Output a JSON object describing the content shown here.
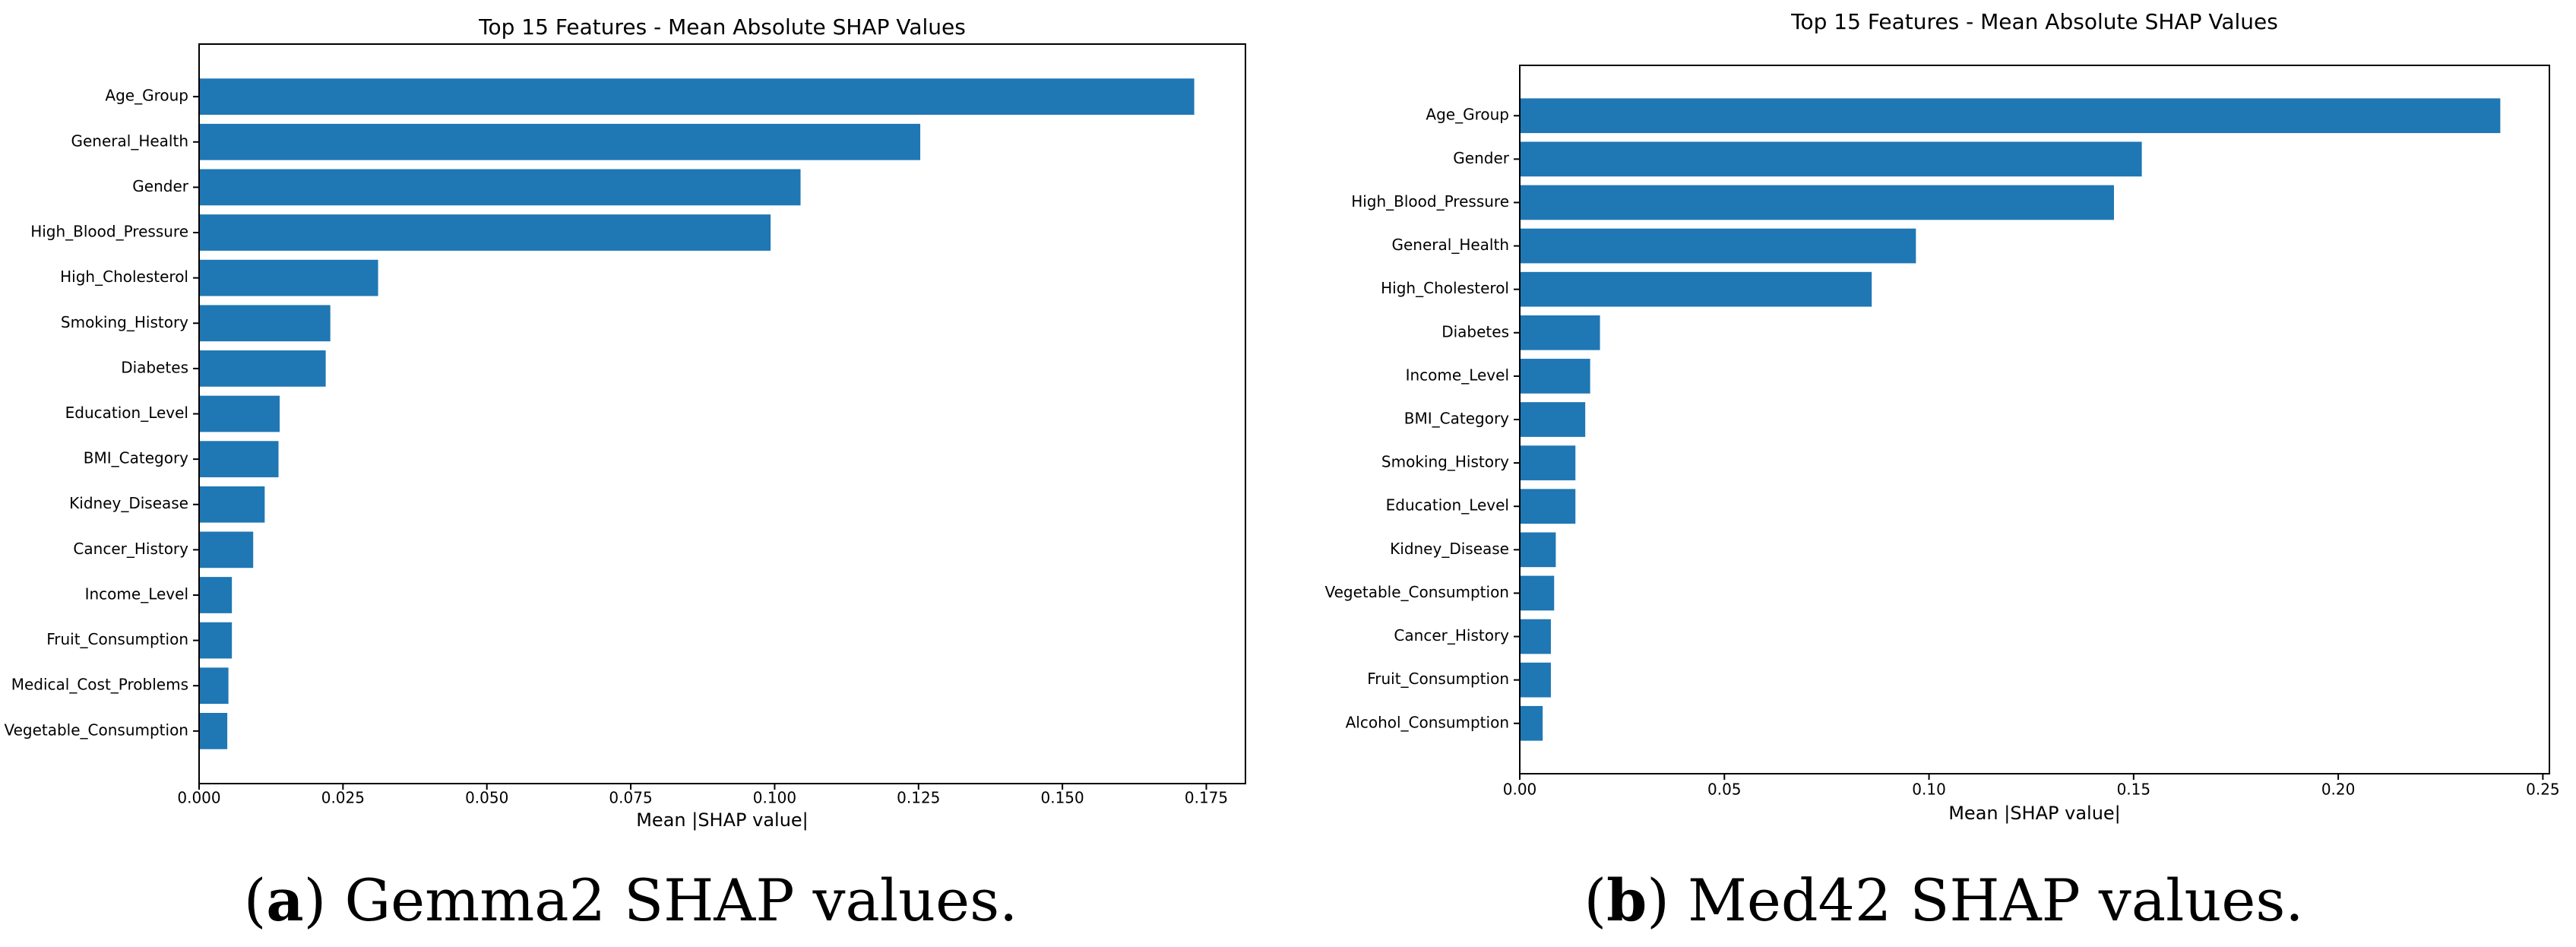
{
  "chart_data": [
    {
      "type": "barh",
      "title": "Top 15 Features - Mean Absolute SHAP Values",
      "x_label": "Mean |SHAP value|",
      "color": "#1f77b4",
      "categories": [
        "Age_Group",
        "General_Health",
        "Gender",
        "High_Blood_Pressure",
        "High_Cholesterol",
        "Smoking_History",
        "Diabetes",
        "Education_Level",
        "BMI_Category",
        "Kidney_Disease",
        "Cancer_History",
        "Income_Level",
        "Fruit_Consumption",
        "Medical_Cost_Problems",
        "Vegetable_Consumption"
      ],
      "values": [
        0.1729,
        0.1253,
        0.1045,
        0.0993,
        0.0311,
        0.0228,
        0.022,
        0.014,
        0.0138,
        0.0114,
        0.0094,
        0.0057,
        0.0057,
        0.0051,
        0.0049
      ],
      "xlim": [
        0,
        0.1818
      ],
      "xticks": [
        {
          "value": 0,
          "label": "0.000"
        },
        {
          "value": 0.025,
          "label": "0.025"
        },
        {
          "value": 0.05,
          "label": "0.050"
        },
        {
          "value": 0.075,
          "label": "0.075"
        },
        {
          "value": 0.1,
          "label": "0.100"
        },
        {
          "value": 0.125,
          "label": "0.125"
        },
        {
          "value": 0.15,
          "label": "0.150"
        },
        {
          "value": 0.175,
          "label": "0.175"
        }
      ],
      "caption": [
        "(",
        "a",
        ") Gemma2 SHAP values."
      ]
    },
    {
      "type": "barh",
      "title": "Top 15 Features - Mean Absolute SHAP Values",
      "x_label": "Mean |SHAP value|",
      "color": "#1f77b4",
      "categories": [
        "Age_Group",
        "Gender",
        "High_Blood_Pressure",
        "General_Health",
        "High_Cholesterol",
        "Diabetes",
        "Income_Level",
        "BMI_Category",
        "Smoking_History",
        "Education_Level",
        "Kidney_Disease",
        "Vegetable_Consumption",
        "Cancer_History",
        "Fruit_Consumption",
        "Alcohol_Consumption"
      ],
      "values": [
        0.2396,
        0.152,
        0.1452,
        0.0968,
        0.086,
        0.0196,
        0.0172,
        0.016,
        0.0136,
        0.0136,
        0.0088,
        0.0084,
        0.0076,
        0.0076,
        0.0056
      ],
      "xlim": [
        0,
        0.2516
      ],
      "xticks": [
        {
          "value": 0,
          "label": "0.00"
        },
        {
          "value": 0.05,
          "label": "0.05"
        },
        {
          "value": 0.1,
          "label": "0.10"
        },
        {
          "value": 0.15,
          "label": "0.15"
        },
        {
          "value": 0.2,
          "label": "0.20"
        },
        {
          "value": 0.25,
          "label": "0.25"
        }
      ],
      "caption": [
        "(",
        "b",
        ") Med42 SHAP values."
      ]
    }
  ]
}
